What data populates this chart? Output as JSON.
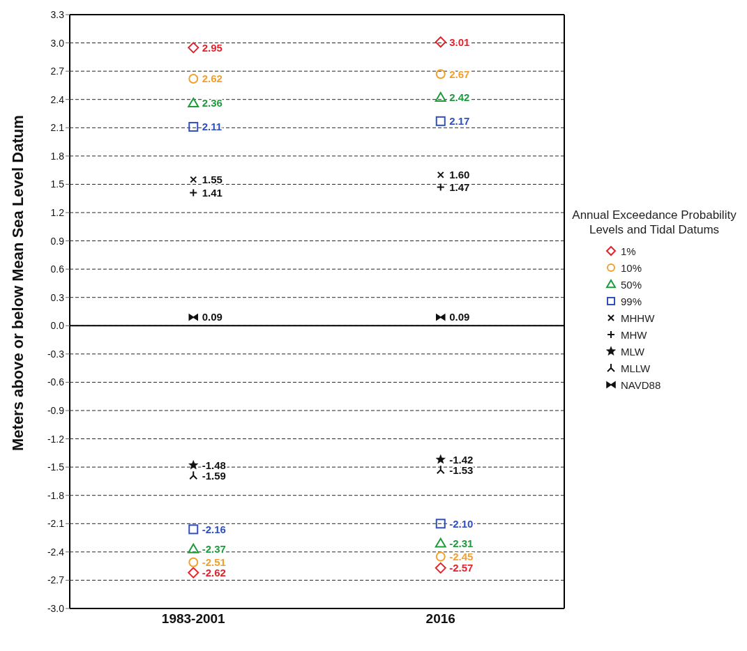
{
  "chart_data": {
    "type": "scatter",
    "ylabel": "Meters above or below Mean Sea Level Datum",
    "legend_title": "Annual Exceedance Probability Levels and Tidal Datums",
    "categories": [
      "1983-2001",
      "2016"
    ],
    "ylim": [
      -3.0,
      3.3
    ],
    "yticks": [
      {
        "value": -3,
        "label": "-3.0"
      },
      -2.7,
      -2.4,
      -2.1,
      -1.8,
      -1.5,
      -1.2,
      -0.9,
      -0.6,
      -0.3,
      {
        "value": 0,
        "label": "0.0"
      },
      0.3,
      0.6,
      0.9,
      1.2,
      1.5,
      1.8,
      2.1,
      2.4,
      2.7,
      {
        "value": 3,
        "label": "3.0"
      },
      3.3
    ],
    "grid": "y",
    "legend": "right",
    "ref_lines": [
      {
        "axis": "y",
        "value": 0,
        "color": "#000000",
        "line_style": "solid"
      }
    ],
    "series": [
      {
        "name": "1%",
        "color": "#e3232c",
        "marker": "diamond",
        "values": [
          2.95,
          3.01
        ],
        "value_labels": [
          "2.95",
          "3.01"
        ]
      },
      {
        "name": "10%",
        "color": "#f0a030",
        "marker": "circle",
        "values": [
          2.62,
          2.67
        ],
        "value_labels": [
          "2.62",
          "2.67"
        ]
      },
      {
        "name": "50%",
        "color": "#1f9a3c",
        "marker": "triangle",
        "values": [
          2.36,
          2.42
        ],
        "value_labels": [
          "2.36",
          "2.42"
        ]
      },
      {
        "name": "99%",
        "color": "#2e4fc4",
        "marker": "square",
        "values": [
          2.11,
          2.17
        ],
        "value_labels": [
          "2.11",
          "2.17"
        ]
      },
      {
        "name": "MHHW",
        "color": "#111111",
        "marker": "x",
        "values": [
          1.55,
          1.6
        ],
        "value_labels": [
          "1.55",
          "1.60"
        ]
      },
      {
        "name": "MHW",
        "color": "#111111",
        "marker": "plus",
        "values": [
          1.41,
          1.47
        ],
        "value_labels": [
          "1.41",
          "1.47"
        ]
      },
      {
        "name": "MLW",
        "color": "#111111",
        "marker": "star",
        "values": [
          -1.48,
          -1.42
        ],
        "value_labels": [
          "-1.48",
          "-1.42"
        ]
      },
      {
        "name": "MLLW",
        "color": "#111111",
        "marker": "cross",
        "values": [
          -1.59,
          -1.53
        ],
        "value_labels": [
          "-1.59",
          "-1.53"
        ]
      },
      {
        "name": "NAVD88",
        "color": "#111111",
        "values": [
          0.09,
          0.09
        ],
        "value_labels": [
          "0.09",
          "0.09"
        ]
      },
      {
        "color": "#e3232c",
        "marker": "diamond",
        "values": [
          -2.62,
          -2.57
        ],
        "value_labels": [
          "-2.62",
          "-2.57"
        ]
      },
      {
        "color": "#f0a030",
        "marker": "circle",
        "values": [
          -2.51,
          -2.45
        ],
        "value_labels": [
          "-2.51",
          "-2.45"
        ]
      },
      {
        "color": "#1f9a3c",
        "marker": "triangle",
        "values": [
          -2.37,
          -2.31
        ],
        "value_labels": [
          "-2.37",
          "-2.31"
        ]
      },
      {
        "color": "#2e4fc4",
        "marker": "square",
        "values": [
          -2.16,
          -2.1
        ],
        "value_labels": [
          "-2.16",
          "-2.10"
        ]
      }
    ]
  }
}
